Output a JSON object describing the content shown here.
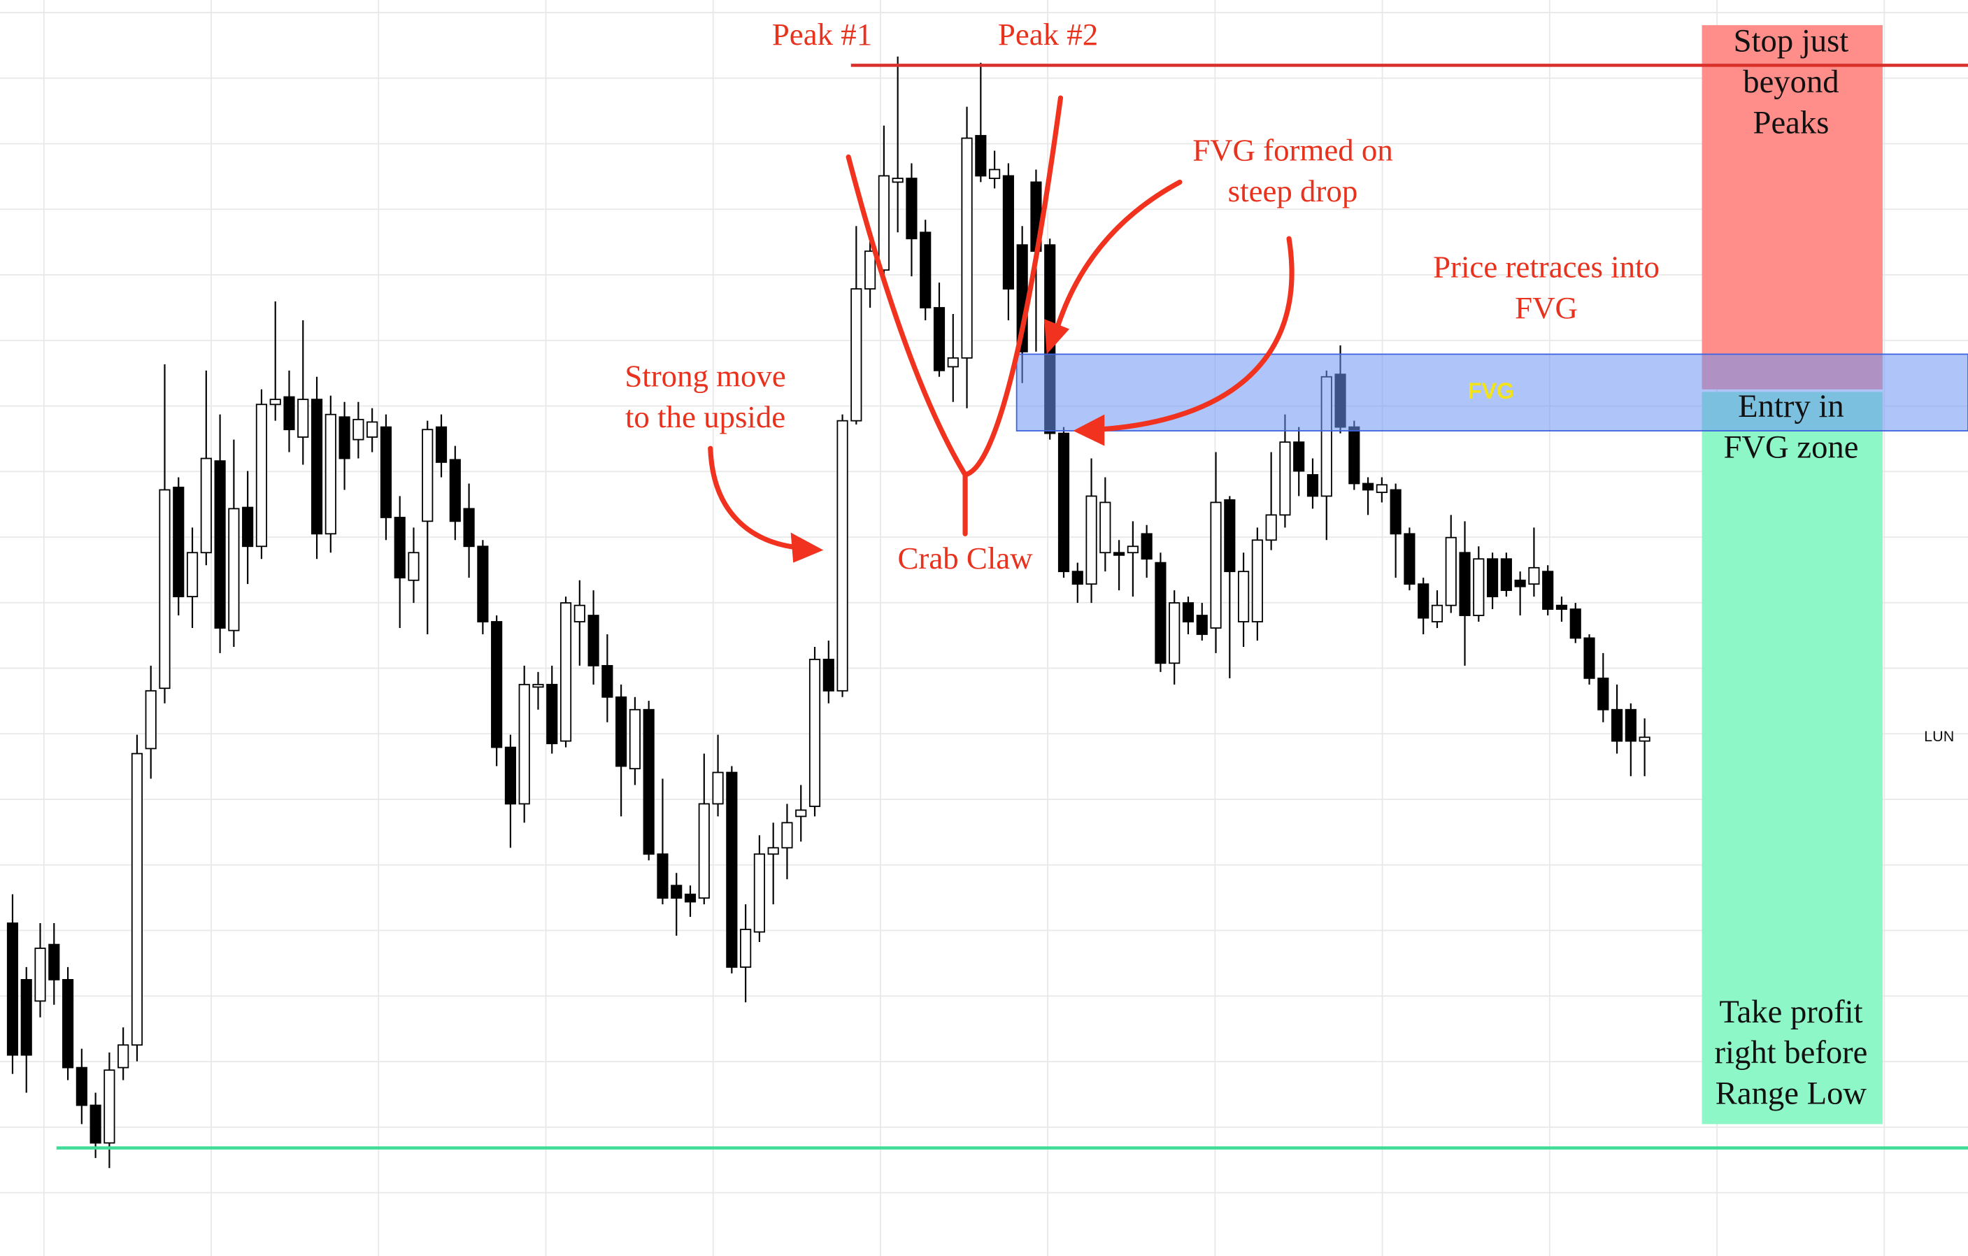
{
  "chart_data": {
    "type": "candlestick",
    "ylim": [
      0,
      100
    ],
    "grid": true,
    "up_color": "#ffffff",
    "down_color": "#000000",
    "edge_color": "#000000",
    "open": [
      26.5,
      22,
      20.3,
      24.8,
      22,
      15,
      12,
      9,
      15,
      16.8,
      40.4,
      45.2,
      61.2,
      52.5,
      56,
      63.3,
      49.8,
      59.6,
      56.5,
      67.8,
      68.4,
      65.2,
      68.2,
      57.5,
      66.8,
      65,
      65.2,
      66,
      58.8,
      53.8,
      58.5,
      66,
      63.4,
      59.5,
      56.5,
      50.5,
      40.5,
      36,
      45.3,
      45.5,
      41,
      50.5,
      51,
      47,
      44.5,
      38.8,
      43.5,
      32,
      29.5,
      28.8,
      28.5,
      36,
      38.5,
      23,
      25.8,
      32,
      32.5,
      35,
      35.8,
      47.5,
      45,
      66.5,
      77,
      78.5,
      85.5,
      85.8,
      81.5,
      75.5,
      70.8,
      71.5,
      89.2,
      85.8,
      86,
      80.5,
      85.5,
      80.5,
      65.5,
      54.5,
      53.5,
      56,
      56,
      56,
      57.5,
      55.2,
      47.2,
      52,
      51,
      50,
      60.2,
      50.5,
      50.5,
      57,
      59,
      64.8,
      62.2,
      60.5,
      70.2,
      66,
      61.5,
      60.8,
      61,
      57.5,
      53.5,
      50.5,
      51.8,
      56,
      51,
      55.5,
      55.5,
      53.8,
      53.5,
      54.5,
      51.8,
      51.5,
      49.2,
      46,
      43.5,
      43.5,
      41
    ],
    "high": [
      28.8,
      23,
      26.5,
      26.5,
      23,
      16.5,
      13,
      16.2,
      18.2,
      41.5,
      47,
      71,
      62,
      58,
      70.5,
      67,
      65,
      62.5,
      69,
      76,
      70.5,
      74.5,
      70,
      68.5,
      68,
      68,
      67.5,
      67,
      60.5,
      58,
      66.5,
      67,
      64.5,
      61.5,
      57,
      51,
      41.5,
      47,
      46.5,
      47,
      52.5,
      53.8,
      53,
      49.5,
      45.5,
      44.5,
      44.2,
      38,
      30.5,
      29.5,
      40,
      41.5,
      39,
      28,
      33.5,
      34.5,
      36,
      37.5,
      48.5,
      49,
      67,
      82,
      81.5,
      90,
      95.5,
      87,
      82.5,
      77.5,
      75,
      91.5,
      95,
      88,
      87,
      82,
      86.5,
      81,
      66,
      55.2,
      63.5,
      62,
      57,
      58.5,
      58.2,
      56,
      53,
      52.5,
      52,
      64,
      60.5,
      56,
      58,
      64,
      67,
      66,
      63.5,
      70.5,
      72.5,
      66.5,
      62,
      62,
      61.5,
      58,
      54,
      53,
      59,
      58.5,
      56.5,
      56,
      56,
      54.5,
      58,
      55,
      52.5,
      52,
      49.5,
      48,
      45.5,
      44,
      42.8
    ],
    "low": [
      14.5,
      13,
      19,
      20,
      14,
      10.5,
      7.8,
      7,
      14,
      15.5,
      38,
      44,
      51,
      50,
      55,
      48,
      48.5,
      53.5,
      55.5,
      66.5,
      64,
      63,
      55.5,
      56,
      61,
      63.5,
      64,
      57,
      50,
      52,
      49.5,
      62,
      57,
      54,
      49.5,
      39,
      32.5,
      34.5,
      43.5,
      40,
      40.5,
      47,
      45.5,
      42.5,
      35,
      37.5,
      31.5,
      28,
      25.5,
      27,
      28,
      35,
      22.5,
      20.2,
      25,
      28,
      30,
      33,
      35,
      44,
      44.5,
      66.2,
      75.5,
      78,
      81.5,
      78,
      74.5,
      70,
      68,
      67.5,
      85.5,
      85,
      74.5,
      69.5,
      72,
      65,
      54,
      52,
      52,
      54.5,
      53,
      52.5,
      54,
      46.5,
      45.5,
      49.5,
      49,
      48,
      46,
      48.5,
      49,
      56.2,
      58,
      60.5,
      59.5,
      57,
      65.5,
      61,
      59,
      60,
      54,
      53,
      49.5,
      50,
      51.2,
      47,
      50.5,
      51.5,
      52.5,
      51,
      52.5,
      51,
      50.5,
      48.8,
      45.5,
      42.5,
      40,
      38.2,
      38.2
    ],
    "close": [
      16,
      16,
      24.5,
      22,
      15,
      12,
      9,
      14.8,
      16.8,
      40,
      45,
      61,
      52.5,
      56,
      63.5,
      50,
      59.5,
      56.5,
      67.8,
      68.2,
      65.8,
      68.2,
      57.5,
      67,
      63.5,
      66.6,
      66.4,
      58.8,
      54,
      56,
      65.8,
      63.2,
      58.5,
      56.5,
      50.5,
      40.5,
      36,
      45.5,
      45.5,
      40.8,
      52,
      51.8,
      47,
      44.5,
      39,
      43.5,
      32,
      28.5,
      28.5,
      28.2,
      36,
      38.5,
      23,
      26,
      32,
      32.5,
      34.5,
      35.5,
      47.5,
      45,
      66.5,
      77,
      80,
      86,
      85.8,
      81,
      75.5,
      70.5,
      71.5,
      89,
      86,
      86.5,
      77,
      72,
      80,
      65.5,
      54.5,
      53.5,
      60.5,
      60,
      55.8,
      56.5,
      55.5,
      47.2,
      52,
      50.5,
      49.5,
      60,
      54.5,
      54.5,
      57,
      59,
      64.8,
      62.5,
      60.5,
      70,
      66,
      61.5,
      61,
      61.4,
      57.5,
      53.5,
      50.8,
      51.8,
      57.2,
      51,
      55.5,
      52.5,
      53,
      53.3,
      54.8,
      51.5,
      51.5,
      49.2,
      46,
      43.5,
      41,
      41,
      41.3
    ],
    "levels": [
      {
        "value": 94.8,
        "color": "#d9302c"
      },
      {
        "value": 8.6,
        "color": "#3fdc98"
      }
    ],
    "zones": [
      {
        "from": 69,
        "to": 98,
        "color": "#ff8e8a"
      },
      {
        "from": 10.5,
        "to": 68.8,
        "color": "#8ef7c7"
      }
    ],
    "fvg": {
      "label": "FVG",
      "from": 65.7,
      "to": 71.8,
      "color": "#6d93f3",
      "label_color": "#f2e31a"
    },
    "annotations": [
      {
        "lines": [
          "Peak #1"
        ]
      },
      {
        "lines": [
          "Peak #2"
        ]
      },
      {
        "lines": [
          "FVG formed on",
          "steep drop"
        ]
      },
      {
        "lines": [
          "Price retraces into",
          "FVG"
        ]
      },
      {
        "lines": [
          "Strong move",
          "to the upside"
        ]
      },
      {
        "lines": [
          "Crab Claw"
        ]
      }
    ],
    "box_texts": [
      {
        "lines": [
          "Stop just",
          "beyond",
          "Peaks"
        ]
      },
      {
        "lines": [
          "Entry in",
          "FVG zone"
        ]
      },
      {
        "lines": [
          "Take profit",
          "right before",
          "Range Low"
        ]
      }
    ],
    "symbol": "LUN"
  }
}
